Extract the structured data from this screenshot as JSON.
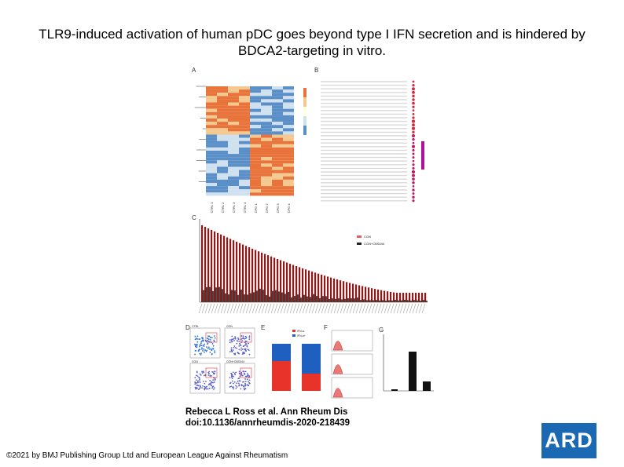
{
  "title": {
    "line1": "TLR9-induced activation of human pDC goes beyond type I IFN secretion and is hindered by",
    "line2": "BDCA2-targeting in vitro."
  },
  "figure": {
    "panel_labels": [
      "A",
      "B",
      "C",
      "D",
      "E",
      "F",
      "G"
    ],
    "heatmap_columns": [
      "CTRL 1",
      "CTRL 2",
      "CTRL 3",
      "CTRL 4",
      "CPG 1",
      "CPG 2",
      "CPG 3",
      "CPG 4"
    ],
    "legend_c": [
      "CGN",
      "CGN+CBS044"
    ],
    "legend_e": [
      "IFN-a-",
      "IFN-a+"
    ],
    "facs_labels": [
      "CTRL",
      "CGN",
      "CGN",
      "CGN+CBS044"
    ],
    "colors": {
      "heat_high": "#e8743b",
      "heat_low": "#5b8fc7",
      "bar_red": "#8b1a1a",
      "bar_light": "#e06060",
      "e_red": "#e8332a",
      "e_blue": "#1f5fbf"
    }
  },
  "citation": {
    "line1": "Rebecca L Ross et al. Ann Rheum Dis",
    "line2": "doi:10.1136/annrheumdis-2020-218439"
  },
  "copyright": "©2021 by BMJ Publishing Group Ltd and European League Against Rheumatism",
  "logo": "ARD"
}
